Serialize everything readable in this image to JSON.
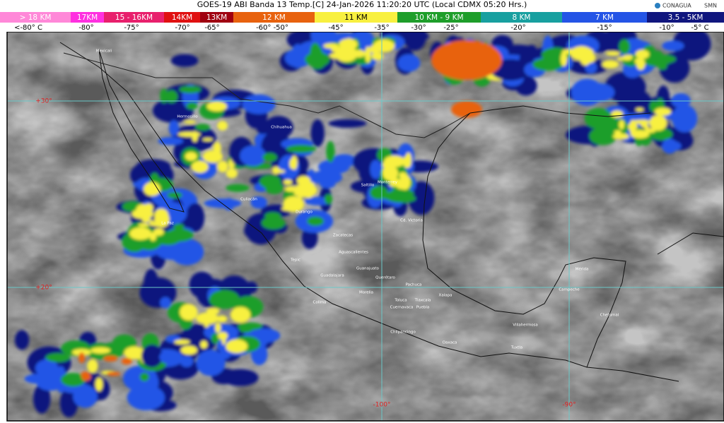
{
  "header": {
    "title": "GOES-19 ABI Banda 13 Temp.[C] 24-Jan-2026 11:20:20 UTC (Local CDMX  05:20 Hrs.)",
    "logos": [
      "CONAGUA",
      "SMN"
    ]
  },
  "legend": {
    "bands": [
      {
        "label": "> 18 KM",
        "color": "#ff88d8"
      },
      {
        "label": "17KM",
        "color": "#ff30e0"
      },
      {
        "label": "15 - 16KM",
        "color": "#e8206c"
      },
      {
        "label": "14KM",
        "color": "#e01010"
      },
      {
        "label": "13KM",
        "color": "#a00010"
      },
      {
        "label": "12 KM",
        "color": "#e8620e"
      },
      {
        "label": "11 KM",
        "color": "#f8f040"
      },
      {
        "label": "10 KM - 9 KM",
        "color": "#1e9e2a"
      },
      {
        "label": "8 KM",
        "color": "#18a0a0"
      },
      {
        "label": "7 KM",
        "color": "#2454e6"
      },
      {
        "label": "3.5 - 5KM",
        "color": "#10167e"
      }
    ],
    "temps": [
      "<-80° C",
      "-80°",
      "-75°",
      "-70°",
      "-65°",
      "-60° -50°",
      "-45°",
      "-35°",
      "-30°",
      "-25°",
      "-20°",
      "-15°",
      "-10°",
      "-5° C"
    ]
  },
  "map": {
    "grid_labels": [
      "+30°",
      "+20°",
      "-100°",
      "-90°"
    ],
    "cities": [
      "Mexicali",
      "Hermosillo",
      "Chihuahua",
      "La Paz",
      "Culiacán",
      "Durango",
      "Saltillo",
      "Monterrey",
      "Cd. Victoria",
      "Zacatecas",
      "Aguascalientes",
      "Tepic",
      "Guanajuato",
      "Guadalajara",
      "Querétaro",
      "Pachuca",
      "Morelia",
      "Toluca",
      "Tlaxcala",
      "Cuernavaca",
      "Puebla",
      "Xalapa",
      "Colima",
      "Chilpancingo",
      "Oaxaca",
      "Villahermosa",
      "Tuxtla",
      "Mérida",
      "Campeche",
      "Chetumal"
    ]
  }
}
